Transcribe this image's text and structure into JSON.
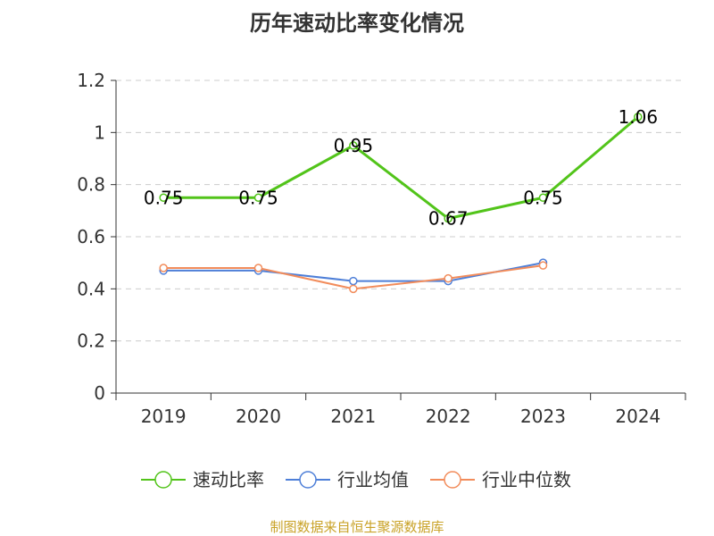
{
  "chart_data": {
    "type": "line",
    "title": "历年速动比率变化情况",
    "categories": [
      "2019",
      "2020",
      "2021",
      "2022",
      "2023",
      "2024"
    ],
    "ylim": [
      0,
      1.2
    ],
    "yticks": [
      "0",
      "0.2",
      "0.4",
      "0.6",
      "0.8",
      "1",
      "1.2"
    ],
    "grid": true,
    "legend_position": "bottom",
    "series": [
      {
        "name": "速动比率",
        "color": "#52c41a",
        "values": [
          0.75,
          0.75,
          0.95,
          0.67,
          0.75,
          1.06
        ],
        "labels": [
          "0.75",
          "0.75",
          "0.95",
          "0.67",
          "0.75",
          "1.06"
        ]
      },
      {
        "name": "行业均值",
        "color": "#4e7fd8",
        "values": [
          0.47,
          0.47,
          0.43,
          0.43,
          0.5,
          null
        ]
      },
      {
        "name": "行业中位数",
        "color": "#f28c5b",
        "values": [
          0.48,
          0.48,
          0.4,
          0.44,
          0.49,
          null
        ]
      }
    ]
  },
  "source_text": "制图数据来自恒生聚源数据库"
}
